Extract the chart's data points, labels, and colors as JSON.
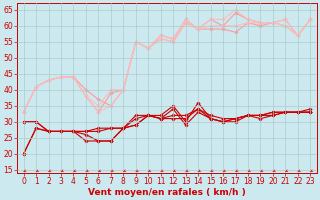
{
  "background_color": "#cde9f0",
  "grid_color": "#aacccc",
  "xlabel": "Vent moyen/en rafales ( km/h )",
  "xlabel_color": "#cc0000",
  "xlabel_fontsize": 6.5,
  "tick_color": "#cc0000",
  "tick_fontsize": 5.5,
  "ylim": [
    14,
    67
  ],
  "xlim": [
    -0.5,
    23.5
  ],
  "yticks": [
    15,
    20,
    25,
    30,
    35,
    40,
    45,
    50,
    55,
    60,
    65
  ],
  "xticks": [
    0,
    1,
    2,
    3,
    4,
    5,
    6,
    7,
    8,
    9,
    10,
    11,
    12,
    13,
    14,
    15,
    16,
    17,
    18,
    19,
    20,
    21,
    22,
    23
  ],
  "series_light": [
    {
      "x": [
        0,
        1,
        2,
        3,
        4,
        5,
        6,
        7,
        8,
        9,
        10,
        11,
        12,
        13,
        14,
        15,
        16,
        17,
        18,
        19,
        20,
        21,
        22,
        23
      ],
      "y": [
        33,
        41,
        43,
        44,
        44,
        38,
        33,
        39,
        40,
        55,
        53,
        57,
        56,
        62,
        59,
        62,
        60,
        64,
        62,
        61,
        61,
        62,
        57,
        62
      ],
      "color": "#ff9999"
    },
    {
      "x": [
        0,
        1,
        2,
        3,
        4,
        5,
        6,
        7,
        8,
        9,
        10,
        11,
        12,
        13,
        14,
        15,
        16,
        17,
        18,
        19,
        20,
        21,
        22,
        23
      ],
      "y": [
        33,
        41,
        43,
        44,
        44,
        40,
        37,
        35,
        40,
        55,
        53,
        56,
        55,
        61,
        59,
        59,
        59,
        58,
        61,
        60,
        61,
        60,
        57,
        62
      ],
      "color": "#ff9999"
    },
    {
      "x": [
        0,
        1,
        2,
        3,
        4,
        5,
        6,
        7,
        8,
        9,
        10,
        11,
        12,
        13,
        14,
        15,
        16,
        17,
        18,
        19,
        20,
        21,
        22,
        23
      ],
      "y": [
        33,
        41,
        43,
        44,
        44,
        38,
        35,
        40,
        40,
        55,
        53,
        57,
        56,
        62,
        59,
        62,
        62,
        65,
        62,
        61,
        61,
        62,
        57,
        62
      ],
      "color": "#ffbbbb"
    },
    {
      "x": [
        0,
        1,
        2,
        3,
        4,
        5,
        6,
        7,
        8,
        9,
        10,
        11,
        12,
        13,
        14,
        15,
        16,
        17,
        18,
        19,
        20,
        21,
        22,
        23
      ],
      "y": [
        33,
        41,
        43,
        44,
        44,
        38,
        33,
        35,
        40,
        55,
        53,
        56,
        55,
        61,
        59,
        60,
        60,
        60,
        61,
        61,
        61,
        60,
        57,
        62
      ],
      "color": "#ffbbbb"
    }
  ],
  "series_dark": [
    {
      "x": [
        0,
        1,
        2,
        3,
        4,
        5,
        6,
        7,
        8,
        9,
        10,
        11,
        12,
        13,
        14,
        15,
        16,
        17,
        18,
        19,
        20,
        21,
        22,
        23
      ],
      "y": [
        20,
        28,
        27,
        27,
        27,
        24,
        24,
        24,
        28,
        29,
        32,
        32,
        35,
        30,
        36,
        31,
        30,
        31,
        32,
        32,
        32,
        33,
        33,
        33
      ],
      "color": "#cc0000"
    },
    {
      "x": [
        0,
        1,
        2,
        3,
        4,
        5,
        6,
        7,
        8,
        9,
        10,
        11,
        12,
        13,
        14,
        15,
        16,
        17,
        18,
        19,
        20,
        21,
        22,
        23
      ],
      "y": [
        20,
        28,
        27,
        27,
        27,
        26,
        24,
        24,
        28,
        29,
        32,
        31,
        34,
        29,
        33,
        31,
        30,
        30,
        32,
        31,
        32,
        33,
        33,
        33
      ],
      "color": "#cc0000"
    },
    {
      "x": [
        0,
        1,
        2,
        3,
        4,
        5,
        6,
        7,
        8,
        9,
        10,
        11,
        12,
        13,
        14,
        15,
        16,
        17,
        18,
        19,
        20,
        21,
        22,
        23
      ],
      "y": [
        30,
        30,
        27,
        27,
        27,
        27,
        27,
        28,
        28,
        31,
        32,
        31,
        31,
        31,
        34,
        31,
        30,
        31,
        32,
        32,
        33,
        33,
        33,
        33
      ],
      "color": "#cc0000"
    },
    {
      "x": [
        0,
        1,
        2,
        3,
        4,
        5,
        6,
        7,
        8,
        9,
        10,
        11,
        12,
        13,
        14,
        15,
        16,
        17,
        18,
        19,
        20,
        21,
        22,
        23
      ],
      "y": [
        30,
        30,
        27,
        27,
        27,
        27,
        28,
        28,
        28,
        32,
        32,
        31,
        32,
        32,
        34,
        32,
        31,
        31,
        32,
        32,
        33,
        33,
        33,
        34
      ],
      "color": "#cc0000"
    }
  ]
}
